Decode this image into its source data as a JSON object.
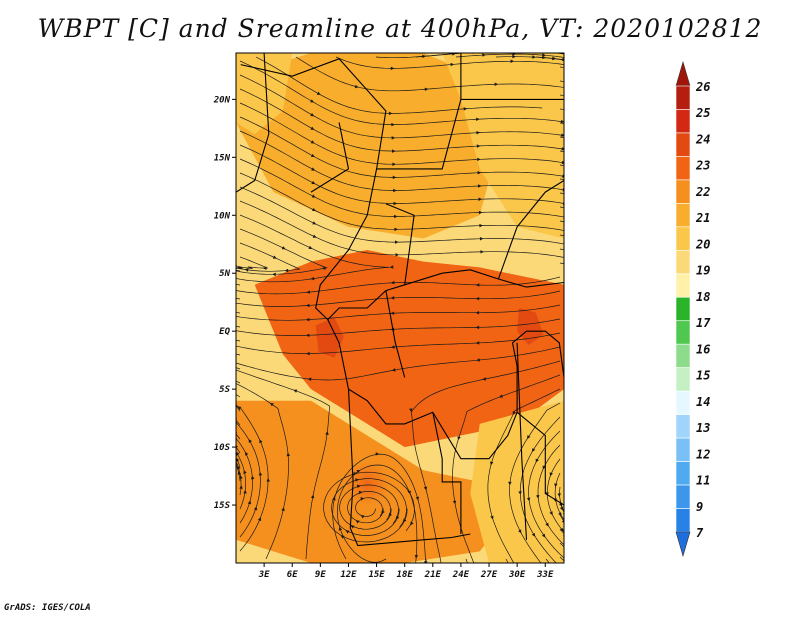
{
  "title": "WBPT [C] and Sreamline at 400hPa, VT: 2020102812",
  "credit": "GrADS: IGES/COLA",
  "map": {
    "lat_range": [
      -20,
      24
    ],
    "lon_range": [
      0,
      35
    ],
    "lat_ticks": [
      {
        "value": 20,
        "label": "20N"
      },
      {
        "value": 15,
        "label": "15N"
      },
      {
        "value": 10,
        "label": "10N"
      },
      {
        "value": 5,
        "label": "5N"
      },
      {
        "value": 0,
        "label": "EQ"
      },
      {
        "value": -5,
        "label": "5S"
      },
      {
        "value": -10,
        "label": "10S"
      },
      {
        "value": -15,
        "label": "15S"
      }
    ],
    "lon_ticks": [
      {
        "value": 3,
        "label": "3E"
      },
      {
        "value": 6,
        "label": "6E"
      },
      {
        "value": 9,
        "label": "9E"
      },
      {
        "value": 12,
        "label": "12E"
      },
      {
        "value": 15,
        "label": "15E"
      },
      {
        "value": 18,
        "label": "18E"
      },
      {
        "value": 21,
        "label": "21E"
      },
      {
        "value": 24,
        "label": "24E"
      },
      {
        "value": 27,
        "label": "27E"
      },
      {
        "value": 30,
        "label": "30E"
      },
      {
        "value": 33,
        "label": "33E"
      }
    ],
    "wbpt_regions": [
      {
        "name": "warm-band-23",
        "level": 23,
        "color": "#f06414",
        "outline": [
          [
            2,
            4
          ],
          [
            8,
            6
          ],
          [
            14,
            7
          ],
          [
            20,
            6
          ],
          [
            26,
            5.5
          ],
          [
            32,
            4.5
          ],
          [
            35,
            4
          ],
          [
            35,
            -5
          ],
          [
            30,
            -8
          ],
          [
            24,
            -9
          ],
          [
            18,
            -10
          ],
          [
            12,
            -7
          ],
          [
            8,
            -5
          ],
          [
            5,
            -2
          ],
          [
            3,
            2
          ]
        ]
      },
      {
        "name": "peak-24",
        "level": 24,
        "color": "#e24a12",
        "outline": [
          [
            8.5,
            0.5
          ],
          [
            10.5,
            1.2
          ],
          [
            11.5,
            -0.5
          ],
          [
            10.5,
            -2.3
          ],
          [
            8.8,
            -1.8
          ]
        ]
      },
      {
        "name": "peak-24-east",
        "level": 24,
        "color": "#e24a12",
        "outline": [
          [
            30.2,
            2
          ],
          [
            32,
            1.6
          ],
          [
            32.8,
            -0.3
          ],
          [
            31.2,
            -1.2
          ],
          [
            30,
            0
          ]
        ]
      },
      {
        "name": "south-22",
        "level": 22,
        "color": "#f5901e",
        "outline": [
          [
            0,
            -6
          ],
          [
            8,
            -6
          ],
          [
            14,
            -9
          ],
          [
            20,
            -12
          ],
          [
            26,
            -13
          ],
          [
            30,
            -15
          ],
          [
            26,
            -19
          ],
          [
            18,
            -20
          ],
          [
            8,
            -20
          ],
          [
            0,
            -18
          ]
        ]
      },
      {
        "name": "north-21",
        "level": 21,
        "color": "#f8ad2c",
        "outline": [
          [
            0,
            22
          ],
          [
            8,
            24
          ],
          [
            20,
            24
          ],
          [
            26,
            22
          ],
          [
            28,
            16
          ],
          [
            26,
            10
          ],
          [
            20,
            8
          ],
          [
            12,
            9
          ],
          [
            4,
            12
          ],
          [
            0,
            18
          ]
        ]
      },
      {
        "name": "ne-20",
        "level": 20,
        "color": "#fbc74a",
        "outline": [
          [
            22,
            24
          ],
          [
            35,
            24
          ],
          [
            35,
            8
          ],
          [
            30,
            9
          ],
          [
            26,
            14
          ],
          [
            24,
            20
          ]
        ]
      },
      {
        "name": "nw-20",
        "level": 20,
        "color": "#fbc74a",
        "outline": [
          [
            0,
            24
          ],
          [
            6,
            24
          ],
          [
            5,
            19
          ],
          [
            2,
            17
          ],
          [
            0,
            18
          ]
        ]
      },
      {
        "name": "se-20",
        "level": 20,
        "color": "#fbc74a",
        "outline": [
          [
            26,
            -8
          ],
          [
            35,
            -6
          ],
          [
            35,
            -20
          ],
          [
            27,
            -20
          ],
          [
            25,
            -14
          ]
        ]
      }
    ],
    "vortex": {
      "lon": 14,
      "lat": -15.3
    }
  },
  "colorbar": {
    "colors": [
      "#1e6edc",
      "#2882e6",
      "#3c96eb",
      "#50aaf0",
      "#78c0f6",
      "#a0d4fa",
      "#e6f8ff",
      "#c4f0c4",
      "#8cdc8c",
      "#50c850",
      "#2ab42a",
      "#fff1aa",
      "#fbd978",
      "#fbc74a",
      "#f8ad2c",
      "#f5901e",
      "#f06414",
      "#e24a12",
      "#d22814",
      "#b41e10",
      "#a0140a"
    ],
    "labels": [
      "7",
      "9",
      "11",
      "12",
      "13",
      "14",
      "15",
      "16",
      "17",
      "18",
      "19",
      "20",
      "21",
      "22",
      "23",
      "24",
      "25",
      "26"
    ]
  }
}
